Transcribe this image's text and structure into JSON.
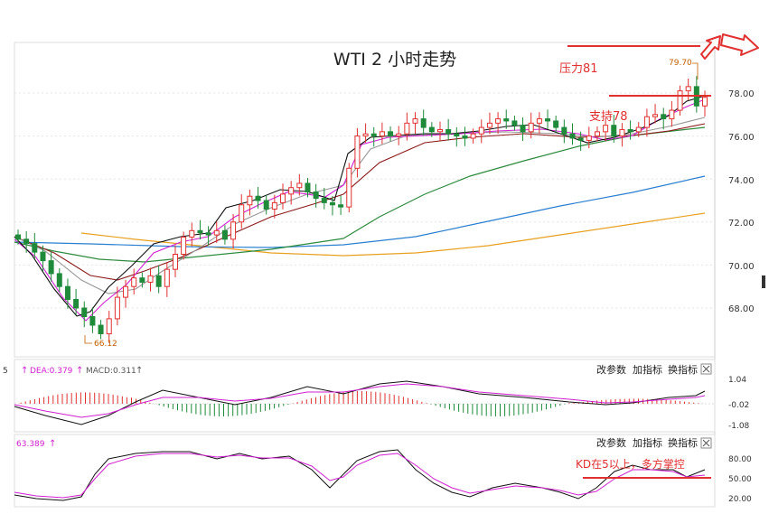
{
  "chart_title": "WTI 2 小时走势",
  "annotations": {
    "resistance_label": "压力81",
    "support_label": "支持78",
    "kd_note": "KD在5以上，多方掌控",
    "high_label": "79.70",
    "low_label": "66.12"
  },
  "price_axis": {
    "ticks": [
      "78.00",
      "76.00",
      "74.00",
      "72.00",
      "70.00",
      "68.00"
    ]
  },
  "macd_panel": {
    "legend_prefix": "5",
    "dea_label": "DEA:0.379",
    "macd_label": "MACD:0.311",
    "buttons": [
      "改参数",
      "加指标",
      "换指标"
    ],
    "ticks": [
      "1.04",
      "-0.02",
      "-1.08"
    ]
  },
  "kd_panel": {
    "legend_text": "63.389",
    "buttons": [
      "改参数",
      "加指标",
      "换指标"
    ],
    "ticks": [
      "80.00",
      "50.00",
      "20.00"
    ]
  },
  "colors": {
    "up_candle": "#e03030",
    "down_candle": "#1e8a3a",
    "ma_black": "#111111",
    "ma_magenta": "#d020d0",
    "ma_gray": "#999999",
    "ma_darkred": "#8b1a1a",
    "ma_green": "#2e8b3e",
    "ma_blue": "#2a7fd0",
    "ma_orange": "#e8a020",
    "annotation_red": "#e03030"
  },
  "chart_data": {
    "type": "candlestick",
    "title": "WTI 2 小时走势",
    "ylim": [
      66,
      79.8
    ],
    "close": [
      71.2,
      71.0,
      70.6,
      70.2,
      69.6,
      69.0,
      68.4,
      68.0,
      67.6,
      67.2,
      66.8,
      67.5,
      68.5,
      69.0,
      69.4,
      69.2,
      69.5,
      69.0,
      69.8,
      70.5,
      71.3,
      71.6,
      71.5,
      71.4,
      71.6,
      71.2,
      72.0,
      72.8,
      73.2,
      73.0,
      72.6,
      72.9,
      73.3,
      73.6,
      73.8,
      73.4,
      73.1,
      72.9,
      72.8,
      72.7,
      74.5,
      76.0,
      76.1,
      76.0,
      76.2,
      76.0,
      76.1,
      76.6,
      76.8,
      76.4,
      76.2,
      76.3,
      76.1,
      76.0,
      75.9,
      76.1,
      76.4,
      76.6,
      76.8,
      76.7,
      76.5,
      76.2,
      76.6,
      76.8,
      76.7,
      76.4,
      76.1,
      75.9,
      75.8,
      76.0,
      76.2,
      76.5,
      76.0,
      76.3,
      76.2,
      76.4,
      76.9,
      77.0,
      76.8,
      77.2,
      78.1,
      78.3,
      77.4,
      77.8
    ]
  }
}
